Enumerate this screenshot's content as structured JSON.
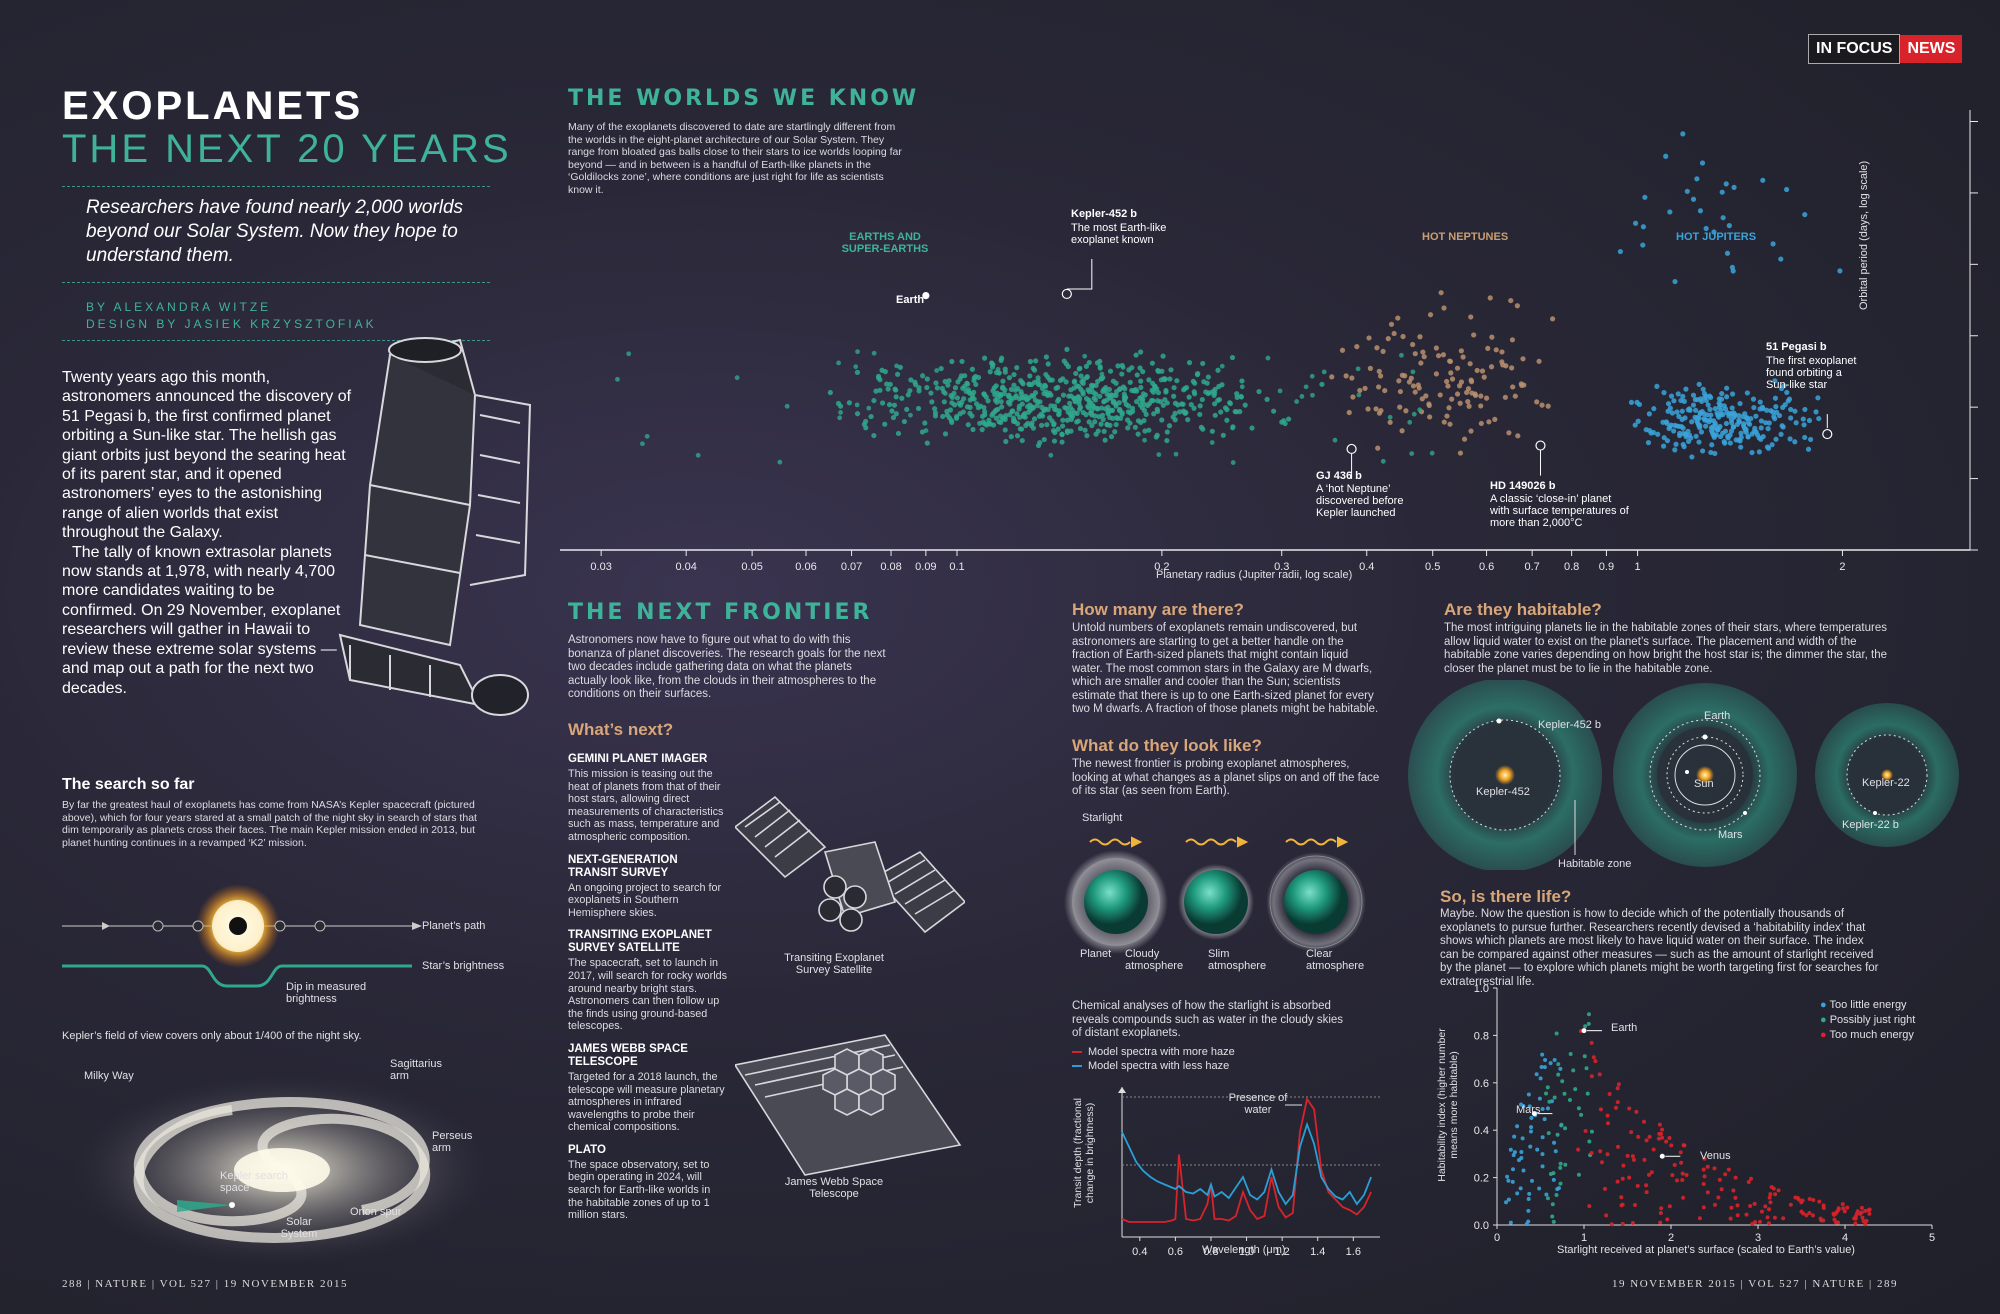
{
  "badge": {
    "in_focus": "IN FOCUS",
    "news": "NEWS"
  },
  "header": {
    "title": "EXOPLANETS",
    "subtitle": "THE NEXT 20 YEARS",
    "standfirst": "Researchers have found nearly 2,000 worlds beyond our Solar System. Now they hope to understand them.",
    "byline1": "BY ALEXANDRA WITZE",
    "byline2": "DESIGN BY JASIEK KRZYSZTOFIAK"
  },
  "intro": {
    "p1": "Twenty years ago this month, astronomers announced the discovery of 51 Pegasi b, the first confirmed planet orbiting a Sun-like star. The hellish gas giant orbits just beyond the searing heat of its parent star, and it opened astronomers’ eyes to the astonishing range of alien worlds that exist throughout the Galaxy.",
    "p2": "The tally of known extrasolar planets now stands at 1,978, with nearly 4,700 more candidates waiting to be confirmed. On 29 November, exoplanet researchers will gather in Hawaii to review these extreme solar systems — and map out a path for the next two decades."
  },
  "search": {
    "title": "The search so far",
    "text": "By far the greatest haul of exoplanets has come from NASA’s Kepler spacecraft (pictured above), which for four years stared at a small patch of the night sky in search of stars that dim temporarily as planets cross their faces. The main Kepler mission ended in 2013, but planet hunting continues in a revamped ‘K2’ mission.",
    "planet_path": "Planet’s path",
    "star_brightness": "Star’s brightness",
    "dip": "Dip in measured brightness",
    "fov": "Kepler’s field of view covers only about 1/400 of the night sky.",
    "milky_way": "Milky Way",
    "sagittarius": "Sagittarius arm",
    "perseus": "Perseus arm",
    "kepler_space": "Kepler search space",
    "orion": "Orion spur",
    "solar": "Solar System"
  },
  "footer": {
    "left": "288 | NATURE | VOL 527 | 19 NOVEMBER 2015",
    "right": "19 NOVEMBER 2015 | VOL 527 | NATURE | 289"
  },
  "worlds": {
    "title": "THE WORLDS WE KNOW",
    "text": "Many of the exoplanets discovered to date are startlingly different from the worlds in the eight-planet architecture of our Solar System. They range from bloated gas balls close to their stars to ice worlds looping far beyond — and in between is a handful of Earth-like planets in the ‘Goldilocks zone’, where conditions are just right for life as scientists know it.",
    "group_earths": "EARTHS AND SUPER-EARTHS",
    "group_neptunes": "HOT NEPTUNES",
    "group_jupiters": "HOT JUPITERS",
    "kepler452_name": "Kepler-452 b",
    "kepler452_desc": "The most Earth-like exoplanet known",
    "earth": "Earth",
    "gj436_name": "GJ 436 b",
    "gj436_desc": "A ‘hot Neptune’ discovered before Kepler launched",
    "hd_name": "HD 149026 b",
    "hd_desc": "A classic ‘close-in’ planet with surface temperatures of more than 2,000°C",
    "peg_name": "51 Pegasi b",
    "peg_desc": "The first exoplanet found orbiting a Sun-like star",
    "xlabel": "Planetary radius (Jupiter radii, log scale)",
    "ylabel": "Orbital period (days, log scale)"
  },
  "chart_data": [
    {
      "type": "scatter",
      "title": "THE WORLDS WE KNOW",
      "xlabel": "Planetary radius (Jupiter radii, log scale)",
      "ylabel": "Orbital period (days, log scale)",
      "xscale": "log",
      "yscale": "log",
      "xlim": [
        0.027,
        2.6
      ],
      "ylim": [
        0.1,
        200000
      ],
      "xticks": [
        "0.03",
        "0.04",
        "0.05",
        "0.06",
        "0.07",
        "0.08",
        "0.09",
        "0.1",
        "0.2",
        "0.3",
        "0.4",
        "0.5",
        "0.6",
        "0.7",
        "0.8",
        "0.9",
        "1",
        "2"
      ],
      "yticks": [
        "100,000",
        "10,000",
        "1,000",
        "100",
        "10",
        "1",
        "0.1"
      ],
      "series": [
        {
          "name": "EARTHS AND SUPER-EARTHS",
          "color": "#2fa88c",
          "clusters": [
            {
              "x": [
                0.06,
                0.36
              ],
              "y": [
                2,
                80
              ],
              "n": 650
            }
          ]
        },
        {
          "name": "HOT NEPTUNES",
          "color": "#b8916d",
          "clusters": [
            {
              "x": [
                0.3,
                0.95
              ],
              "y": [
                1.2,
                600
              ],
              "n": 130
            }
          ]
        },
        {
          "name": "HOT JUPITERS",
          "color": "#3aa3d9",
          "clusters": [
            {
              "x": [
                0.9,
                2.0
              ],
              "y": [
                1.5,
                30
              ],
              "n": 260
            },
            {
              "x": [
                0.8,
                2.2
              ],
              "y": [
                100,
                150000
              ],
              "n": 30
            }
          ]
        }
      ],
      "annotated": [
        {
          "name": "Earth",
          "x": 0.09,
          "y": 365
        },
        {
          "name": "Kepler-452 b",
          "x": 0.145,
          "y": 385
        },
        {
          "name": "GJ 436 b",
          "x": 0.38,
          "y": 2.6
        },
        {
          "name": "HD 149026 b",
          "x": 0.72,
          "y": 2.9
        },
        {
          "name": "51 Pegasi b",
          "x": 1.9,
          "y": 4.2
        }
      ]
    },
    {
      "type": "line",
      "title": "",
      "xlabel": "Wavelength (μm)",
      "ylabel": "Transit depth (fractional change in brightness)",
      "x": [
        0.3,
        0.34,
        0.38,
        0.42,
        0.46,
        0.5,
        0.54,
        0.58,
        0.6,
        0.62,
        0.66,
        0.7,
        0.74,
        0.78,
        0.8,
        0.82,
        0.86,
        0.9,
        0.94,
        0.98,
        1.02,
        1.06,
        1.1,
        1.14,
        1.18,
        1.22,
        1.26,
        1.3,
        1.34,
        1.38,
        1.42,
        1.46,
        1.5,
        1.54,
        1.58,
        1.62,
        1.66,
        1.7
      ],
      "xlim": [
        0.3,
        1.75
      ],
      "xticks": [
        "0.4",
        "0.6",
        "0.8",
        "1.0",
        "1.2",
        "1.4",
        "1.6"
      ],
      "series": [
        {
          "name": "Model spectra with more haze",
          "color": "#d8232a",
          "values": [
            0.12,
            0.1,
            0.1,
            0.1,
            0.1,
            0.1,
            0.1,
            0.11,
            0.12,
            0.55,
            0.12,
            0.11,
            0.12,
            0.22,
            0.35,
            0.12,
            0.12,
            0.11,
            0.14,
            0.3,
            0.18,
            0.12,
            0.14,
            0.4,
            0.2,
            0.13,
            0.16,
            0.7,
            0.92,
            0.85,
            0.45,
            0.3,
            0.25,
            0.2,
            0.18,
            0.15,
            0.2,
            0.3
          ]
        },
        {
          "name": "Model spectra with less haze",
          "color": "#2a9fd6",
          "values": [
            0.7,
            0.6,
            0.5,
            0.44,
            0.4,
            0.37,
            0.35,
            0.33,
            0.32,
            0.34,
            0.3,
            0.29,
            0.32,
            0.28,
            0.35,
            0.27,
            0.3,
            0.26,
            0.33,
            0.4,
            0.28,
            0.25,
            0.3,
            0.45,
            0.3,
            0.22,
            0.28,
            0.6,
            0.75,
            0.62,
            0.4,
            0.32,
            0.27,
            0.25,
            0.3,
            0.22,
            0.28,
            0.4
          ]
        }
      ]
    },
    {
      "type": "scatter",
      "title": "",
      "xlabel": "Starlight received at planet’s surface (scaled to Earth’s value)",
      "ylabel": "Habitability index (higher number means more habitable)",
      "xlim": [
        0,
        5
      ],
      "ylim": [
        0,
        1
      ],
      "xticks": [
        "0",
        "1",
        "2",
        "3",
        "4",
        "5"
      ],
      "yticks": [
        "0.0",
        "0.2",
        "0.4",
        "0.6",
        "0.8",
        "1.0"
      ],
      "series": [
        {
          "name": "Too little energy",
          "color": "#3aa3d9",
          "range": {
            "x": [
              0.1,
              0.75
            ],
            "n": 60
          }
        },
        {
          "name": "Possibly just right",
          "color": "#2fa88c",
          "range": {
            "x": [
              0.55,
              1.1
            ],
            "n": 40
          }
        },
        {
          "name": "Too much energy",
          "color": "#d8232a",
          "range": {
            "x": [
              0.9,
              4.3
            ],
            "n": 170
          }
        }
      ],
      "annotated": [
        {
          "name": "Earth",
          "x": 1.0,
          "y": 0.82
        },
        {
          "name": "Mars",
          "x": 0.43,
          "y": 0.47
        },
        {
          "name": "Venus",
          "x": 1.9,
          "y": 0.29
        }
      ]
    }
  ],
  "frontier": {
    "title": "THE NEXT FRONTIER",
    "text": "Astronomers now have to figure out what to do with this bonanza of planet discoveries. The research goals for the next two decades include gathering data on what the planets actually look like, from the clouds in their atmospheres to the conditions on their surfaces.",
    "whats_next": "What’s next?",
    "missions": [
      {
        "name": "GEMINI PLANET IMAGER",
        "text": "This mission is teasing out the heat of planets from that of their host stars, allowing direct measurements of characteristics such as mass, temperature and atmospheric composition."
      },
      {
        "name": "NEXT-GENERATION TRANSIT SURVEY",
        "text": "An ongoing project to search for exoplanets in Southern Hemisphere skies."
      },
      {
        "name": "TRANSITING EXOPLANET SURVEY SATELLITE",
        "text": "The spacecraft, set to launch in 2017, will search for rocky worlds around nearby bright stars. Astronomers can then follow up the finds using ground-based telescopes."
      },
      {
        "name": "JAMES WEBB SPACE TELESCOPE",
        "text": "Targeted for a 2018 launch, the telescope will measure planetary atmospheres in infrared wavelengths to probe their chemical compositions."
      },
      {
        "name": "PLATO",
        "text": "The space observatory, set to begin operating in 2024, will search for Earth-like worlds in the habitable zones of up to 1 million stars."
      }
    ],
    "tess_label": "Transiting Exoplanet Survey Satellite",
    "jwst_label": "James Webb Space Telescope"
  },
  "howmany": {
    "title": "How many are there?",
    "text": "Untold numbers of exoplanets remain undiscovered, but astronomers are starting to get a better handle on the fraction of Earth-sized planets that might contain liquid water. The most common stars in the Galaxy are M dwarfs, which are smaller and cooler than the Sun; scientists estimate that there is up to one Earth-sized planet for every two M dwarfs. A fraction of those planets might be habitable."
  },
  "look": {
    "title": "What do they look like?",
    "text": "The newest frontier is probing exoplanet atmospheres, looking at what changes as a planet slips on and off the face of its star (as seen from Earth).",
    "starlight": "Starlight",
    "planet": "Planet",
    "cloudy": "Cloudy atmosphere",
    "slim": "Slim atmosphere",
    "clear": "Clear atmosphere",
    "chem": "Chemical analyses of how the starlight is absorbed reveals compounds such as water in the cloudy skies of distant exoplanets.",
    "legend_more": "Model spectra with more haze",
    "legend_less": "Model spectra with less haze",
    "water": "Presence of water",
    "xlabel": "Wavelength (μm)",
    "ylabel": "Transit depth (fractional change in brightness)"
  },
  "habitable": {
    "title": "Are they habitable?",
    "text": "The most intriguing planets lie in the habitable zones of their stars, where temperatures allow liquid water to exist on the planet’s surface. The placement and width of the habitable zone varies depending on how bright the host star is; the dimmer the star, the closer the planet must be to lie in the habitable zone.",
    "k452b": "Kepler-452 b",
    "k452": "Kepler-452",
    "earth": "Earth",
    "sun": "Sun",
    "mars": "Mars",
    "k22": "Kepler-22",
    "k22b": "Kepler-22 b",
    "zone": "Habitable zone"
  },
  "life": {
    "title": "So, is there life?",
    "text": "Maybe. Now the question is how to decide which of the potentially thousands of exoplanets to pursue further. Researchers recently devised a ‘habitability index’ that shows which planets are most likely to have liquid water on their surface. The index can be compared against other measures — such as the amount of starlight received by the planet — to explore which planets might be worth targeting first for searches for extraterrestrial life.",
    "legend_little": "Too little energy",
    "legend_right": "Possibly just right",
    "legend_much": "Too much energy",
    "earth": "Earth",
    "mars": "Mars",
    "venus": "Venus",
    "xlabel": "Starlight received at planet’s surface (scaled to Earth’s value)",
    "ylabel": "Habitability index (higher number means more habitable)"
  }
}
